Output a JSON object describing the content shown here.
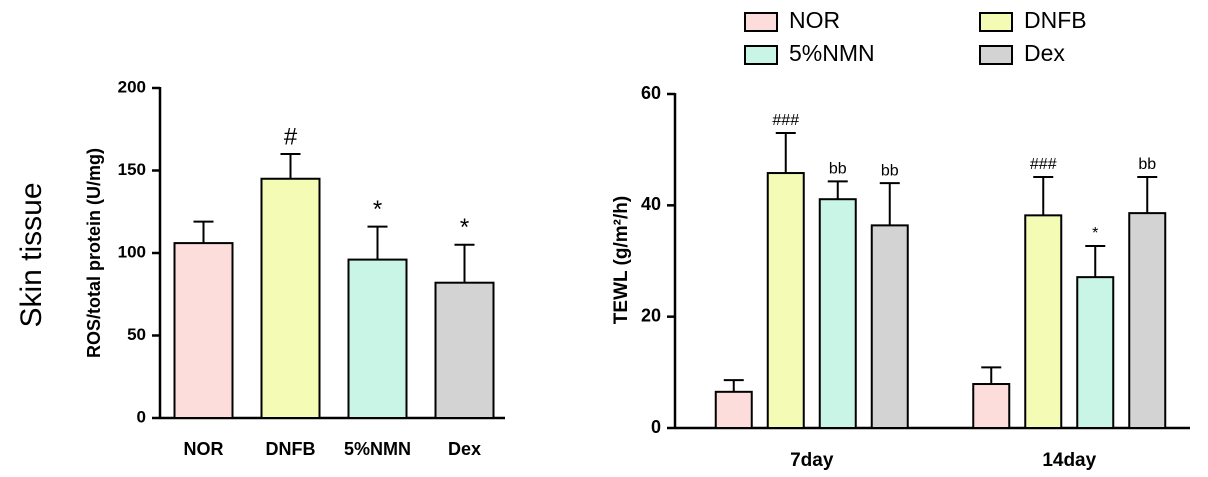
{
  "chart_data": [
    {
      "type": "bar",
      "row_label": "Skin tissue",
      "ylabel": "ROS/total protein (U/mg)",
      "categories": [
        "NOR",
        "DNFB",
        "5%NMN",
        "Dex"
      ],
      "values": [
        106,
        145,
        96,
        82
      ],
      "errors": [
        13,
        15,
        20,
        23
      ],
      "annotations": [
        null,
        "#",
        "*",
        "*"
      ],
      "colors": [
        "#fddcdc",
        "#f3fbb5",
        "#c9f5e6",
        "#d3d3d3"
      ],
      "ylim": [
        0,
        200
      ],
      "yticks": [
        0,
        50,
        100,
        150,
        200
      ]
    },
    {
      "type": "grouped_bar",
      "ylabel": "TEWL (g/m²/h)",
      "legend": "top",
      "categories": [
        "7day",
        "14day"
      ],
      "series": [
        {
          "name": "NOR",
          "color": "#fddcdc",
          "values": [
            6.5,
            7.9
          ],
          "errors": [
            2.1,
            3.0
          ],
          "annotations": [
            null,
            null
          ]
        },
        {
          "name": "DNFB",
          "color": "#f3fbb5",
          "values": [
            45.8,
            38.2
          ],
          "errors": [
            7.2,
            6.9
          ],
          "annotations": [
            "###",
            "###"
          ]
        },
        {
          "name": "5%NMN",
          "color": "#c9f5e6",
          "values": [
            41.1,
            27.1
          ],
          "errors": [
            3.2,
            5.6
          ],
          "annotations": [
            "bb",
            "*"
          ]
        },
        {
          "name": "Dex",
          "color": "#d3d3d3",
          "values": [
            36.4,
            38.6
          ],
          "errors": [
            7.6,
            6.5
          ],
          "annotations": [
            "bb",
            "bb"
          ]
        }
      ],
      "ylim": [
        0,
        60
      ],
      "yticks": [
        0,
        20,
        40,
        60
      ]
    }
  ]
}
